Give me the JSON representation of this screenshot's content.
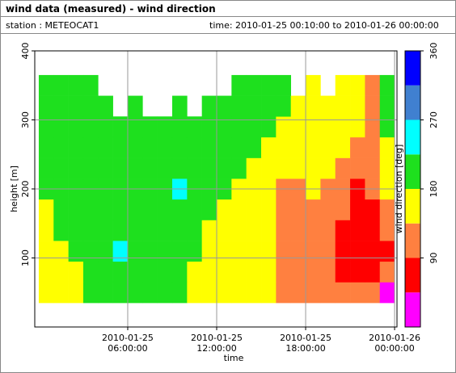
{
  "header": {
    "title": "wind data (measured) - wind direction",
    "station": "station : METEOCAT1",
    "time": "time: 2010-01-25 00:10:00 to 2010-01-26 00:00:00"
  },
  "chart_data": {
    "type": "heatmap",
    "x_label": "time",
    "y_label": "height [m]",
    "xlim": [
      -0.27,
      24.16
    ],
    "xticks": [
      {
        "value": 6,
        "label": "2010-01-25 06:00:00"
      },
      {
        "value": 12,
        "label": "2010-01-25 12:00:00"
      },
      {
        "value": 18,
        "label": "2010-01-25 18:00:00"
      },
      {
        "value": 24,
        "label": "2010-01-26 00:00:00"
      }
    ],
    "ylim": [
      0,
      400
    ],
    "yticks": [
      100,
      200,
      300,
      400
    ],
    "grid": true,
    "xbins": [
      0,
      1,
      2,
      3,
      4,
      5,
      6,
      7,
      8,
      9,
      10,
      11,
      12,
      13,
      14,
      15,
      16,
      17,
      18,
      19,
      20,
      21,
      22,
      23,
      24
    ],
    "ybins": [
      35,
      65,
      95,
      125,
      155,
      185,
      215,
      245,
      275,
      305,
      335,
      365
    ],
    "values": [
      [
        160,
        160,
        160,
        200,
        200,
        200,
        200,
        200,
        200,
        200,
        160,
        160,
        160,
        160,
        160,
        160,
        112,
        112,
        112,
        112,
        112,
        112,
        112,
        20
      ],
      [
        160,
        160,
        160,
        200,
        200,
        200,
        200,
        200,
        200,
        200,
        160,
        160,
        160,
        160,
        160,
        160,
        112,
        112,
        112,
        112,
        68,
        68,
        68,
        112
      ],
      [
        160,
        160,
        200,
        200,
        200,
        245,
        200,
        200,
        200,
        200,
        200,
        160,
        160,
        160,
        160,
        160,
        112,
        112,
        112,
        112,
        68,
        68,
        68,
        68
      ],
      [
        160,
        200,
        200,
        200,
        200,
        200,
        200,
        200,
        200,
        200,
        200,
        160,
        160,
        160,
        160,
        160,
        112,
        112,
        112,
        112,
        68,
        68,
        68,
        112
      ],
      [
        160,
        200,
        200,
        200,
        200,
        200,
        200,
        200,
        200,
        200,
        200,
        200,
        160,
        160,
        160,
        160,
        112,
        112,
        112,
        112,
        112,
        68,
        68,
        112
      ],
      [
        200,
        200,
        200,
        200,
        200,
        200,
        200,
        200,
        200,
        245,
        200,
        200,
        200,
        160,
        160,
        160,
        112,
        112,
        160,
        112,
        112,
        68,
        112,
        160
      ],
      [
        200,
        200,
        200,
        200,
        200,
        200,
        200,
        200,
        200,
        200,
        200,
        200,
        200,
        200,
        160,
        160,
        160,
        160,
        160,
        160,
        112,
        112,
        112,
        160
      ],
      [
        200,
        200,
        200,
        200,
        200,
        200,
        200,
        200,
        200,
        200,
        200,
        200,
        200,
        200,
        200,
        160,
        160,
        160,
        160,
        160,
        160,
        112,
        112,
        160
      ],
      [
        200,
        200,
        200,
        200,
        200,
        200,
        200,
        200,
        200,
        200,
        200,
        200,
        200,
        200,
        200,
        200,
        160,
        160,
        160,
        160,
        160,
        160,
        112,
        200
      ],
      [
        200,
        200,
        200,
        200,
        200,
        null,
        200,
        null,
        null,
        200,
        null,
        200,
        200,
        200,
        200,
        200,
        200,
        160,
        160,
        160,
        160,
        160,
        112,
        200
      ],
      [
        200,
        200,
        200,
        200,
        null,
        null,
        null,
        null,
        null,
        null,
        null,
        null,
        null,
        200,
        200,
        200,
        200,
        null,
        160,
        null,
        160,
        160,
        112,
        200
      ]
    ],
    "colorbar": {
      "label": "wind direction [deg]",
      "lim": [
        0,
        360
      ],
      "ticks": [
        90,
        180,
        270,
        360
      ],
      "colors": [
        "#ff00ff",
        "#ff0000",
        "#ff8040",
        "#ffff00",
        "#1ee01e",
        "#00ffff",
        "#4080d0",
        "#0000ff"
      ]
    }
  }
}
